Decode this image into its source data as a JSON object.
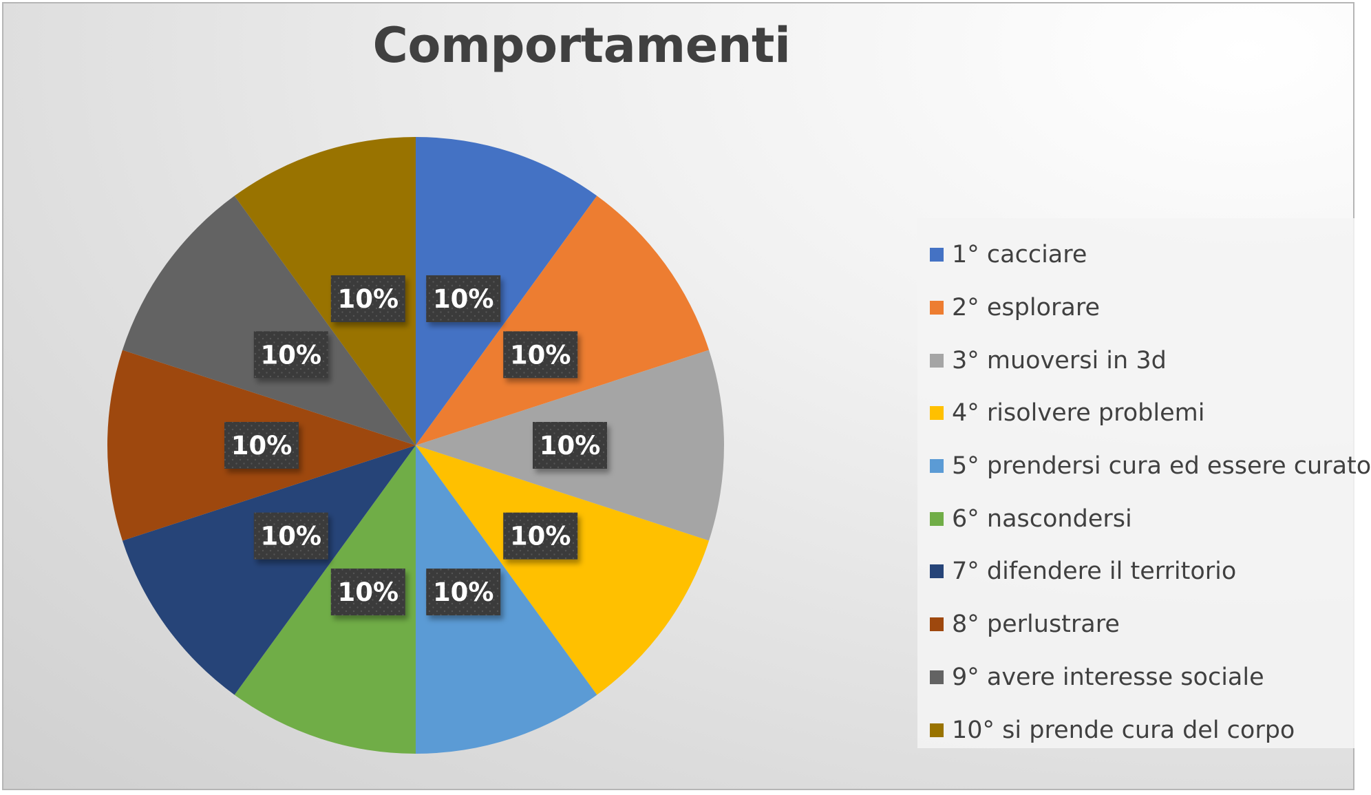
{
  "chart_data": {
    "type": "pie",
    "title": "Comportamenti",
    "legend_position": "right",
    "slices": [
      {
        "label": "1° cacciare",
        "value": 10,
        "data_label": "10%",
        "color": "#4472C4"
      },
      {
        "label": "2° esplorare",
        "value": 10,
        "data_label": "10%",
        "color": "#ED7D31"
      },
      {
        "label": "3° muoversi in 3d",
        "value": 10,
        "data_label": "10%",
        "color": "#A5A5A5"
      },
      {
        "label": "4° risolvere problemi",
        "value": 10,
        "data_label": "10%",
        "color": "#FFC000"
      },
      {
        "label": "5° prendersi cura ed essere curato",
        "value": 10,
        "data_label": "10%",
        "color": "#5B9BD5"
      },
      {
        "label": "6° nascondersi",
        "value": 10,
        "data_label": "10%",
        "color": "#70AD47"
      },
      {
        "label": "7° difendere il territorio",
        "value": 10,
        "data_label": "10%",
        "color": "#264478"
      },
      {
        "label": "8° perlustrare",
        "value": 10,
        "data_label": "10%",
        "color": "#9E480E"
      },
      {
        "label": "9° avere interesse sociale",
        "value": 10,
        "data_label": "10%",
        "color": "#636363"
      },
      {
        "label": "10° si prende cura del corpo",
        "value": 10,
        "data_label": "10%",
        "color": "#997300"
      }
    ]
  }
}
